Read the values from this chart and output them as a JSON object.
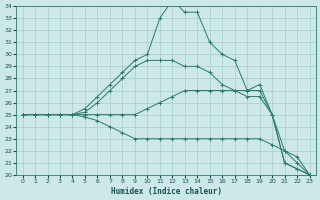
{
  "xlabel": "Humidex (Indice chaleur)",
  "xlim": [
    -0.5,
    23.5
  ],
  "ylim": [
    20,
    34
  ],
  "xticks": [
    0,
    1,
    2,
    3,
    4,
    5,
    6,
    7,
    8,
    9,
    10,
    11,
    12,
    13,
    14,
    15,
    16,
    17,
    18,
    19,
    20,
    21,
    22,
    23
  ],
  "yticks": [
    20,
    21,
    22,
    23,
    24,
    25,
    26,
    27,
    28,
    29,
    30,
    31,
    32,
    33,
    34
  ],
  "bg_color": "#cce8e8",
  "grid_color": "#aacccc",
  "line_color": "#2a7a6a",
  "line1_x": [
    0,
    1,
    2,
    3,
    4,
    5,
    6,
    7,
    8,
    9,
    10,
    11,
    12,
    13,
    14,
    15,
    16,
    17,
    18,
    19,
    20,
    21,
    22,
    23
  ],
  "line1_y": [
    25,
    25,
    25,
    25,
    25,
    25.5,
    26.5,
    27.5,
    28.5,
    29.5,
    30,
    33,
    34.5,
    33.5,
    33.5,
    31,
    30,
    29.5,
    27,
    27.5,
    25,
    21,
    20.5,
    20
  ],
  "line2_x": [
    0,
    1,
    2,
    3,
    4,
    5,
    6,
    7,
    8,
    9,
    10,
    11,
    12,
    13,
    14,
    15,
    16,
    17,
    18,
    19,
    20,
    21,
    22,
    23
  ],
  "line2_y": [
    25,
    25,
    25,
    25,
    25,
    25.2,
    26,
    27,
    28,
    29,
    29.5,
    29.5,
    29.5,
    29,
    29,
    28.5,
    27.5,
    27,
    26.5,
    26.5,
    25,
    21,
    20.5,
    20
  ],
  "line3_x": [
    0,
    1,
    2,
    3,
    4,
    5,
    6,
    7,
    8,
    9,
    10,
    11,
    12,
    13,
    14,
    15,
    16,
    17,
    18,
    19,
    20,
    21,
    22,
    23
  ],
  "line3_y": [
    25,
    25,
    25,
    25,
    25,
    25,
    25,
    25,
    25,
    25,
    25.5,
    26,
    26.5,
    27,
    27,
    27,
    27,
    27,
    27,
    27,
    25,
    22,
    21,
    20
  ],
  "line4_x": [
    0,
    1,
    2,
    3,
    4,
    5,
    6,
    7,
    8,
    9,
    10,
    11,
    12,
    13,
    14,
    15,
    16,
    17,
    18,
    19,
    20,
    21,
    22,
    23
  ],
  "line4_y": [
    25,
    25,
    25,
    25,
    25,
    24.8,
    24.5,
    24,
    23.5,
    23,
    23,
    23,
    23,
    23,
    23,
    23,
    23,
    23,
    23,
    23,
    22.5,
    22,
    21.5,
    20
  ]
}
